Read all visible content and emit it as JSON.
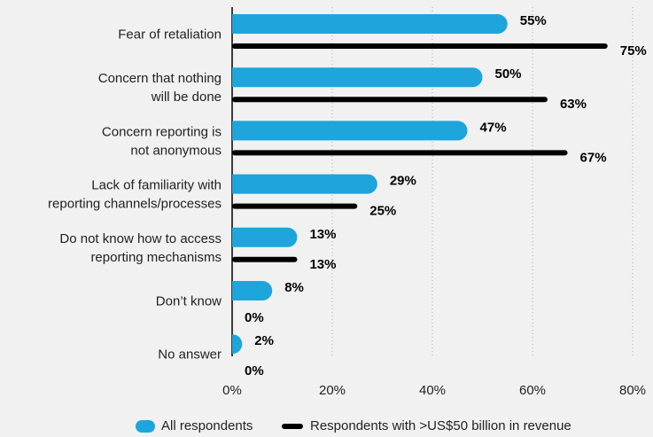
{
  "chart_data": {
    "type": "bar",
    "orientation": "horizontal",
    "categories": [
      [
        "Fear of retaliation"
      ],
      [
        "Concern that nothing",
        "will be done"
      ],
      [
        "Concern reporting is",
        "not anonymous"
      ],
      [
        "Lack of familiarity with",
        "reporting channels/processes"
      ],
      [
        "Do not know how to access",
        "reporting mechanisms"
      ],
      [
        "Don’t know"
      ],
      [
        "No answer"
      ]
    ],
    "series": [
      {
        "name": "All respondents",
        "color": "#1ea5db",
        "values": [
          55,
          50,
          47,
          29,
          13,
          8,
          2
        ],
        "value_labels": [
          "55%",
          "50%",
          "47%",
          "29%",
          "13%",
          "8%",
          "2%"
        ]
      },
      {
        "name": "Respondents with >US$50 billion in revenue",
        "color": "#000000",
        "values": [
          75,
          63,
          67,
          25,
          13,
          0,
          0
        ],
        "value_labels": [
          "75%",
          "63%",
          "67%",
          "25%",
          "13%",
          "0%",
          "0%"
        ]
      }
    ],
    "xlim": [
      0,
      80
    ],
    "xticks": [
      {
        "value": 0,
        "label": "0%"
      },
      {
        "value": 20,
        "label": "20%"
      },
      {
        "value": 40,
        "label": "40%"
      },
      {
        "value": 60,
        "label": "60%"
      },
      {
        "value": 80,
        "label": "80%"
      }
    ],
    "grid": true,
    "legend": "bottom"
  }
}
